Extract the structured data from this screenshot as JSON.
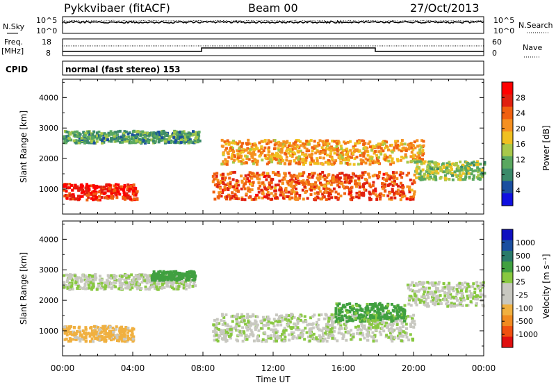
{
  "header": {
    "station": "Pykkvibaer (fitACF)",
    "beam": "Beam 00",
    "date": "27/Oct/2013"
  },
  "strip": {
    "nsky_label": "N.Sky",
    "nsky_ticks": [
      "10^5",
      "10^0"
    ],
    "nsearch_label": "N.Search",
    "nsearch_ticks": [
      "10^5",
      "10^0"
    ],
    "freq_label": "Freq.",
    "freq_unit": "[MHz]",
    "freq_ticks": [
      "18",
      "8"
    ],
    "nave_label": "Nave",
    "nave_ticks": [
      "60",
      "0"
    ],
    "cpid_label": "CPID",
    "cpid_text": "normal (fast stereo) 153"
  },
  "colors": {
    "power": [
      "#1010e0",
      "#1a4fa0",
      "#3a8a6a",
      "#5aa860",
      "#a8c84a",
      "#f0c020",
      "#f59020",
      "#f06010",
      "#e02010",
      "#ff0000"
    ],
    "velocity": [
      "#e01010",
      "#f05010",
      "#f08a20",
      "#f0b040",
      "#c8c8c0",
      "#c8c8c0",
      "#88c840",
      "#40a040",
      "#2a7a6a",
      "#1a4fa0",
      "#1010c0"
    ]
  },
  "chart_data": [
    {
      "type": "heatmap",
      "name": "power",
      "ylabel": "Slant Range [km]",
      "ylim": [
        180,
        4600
      ],
      "yticks": [
        "4000",
        "3000",
        "2000",
        "1000"
      ],
      "xticks": [
        "00:00",
        "04:00",
        "08:00",
        "12:00",
        "16:00",
        "20:00",
        "00:00"
      ],
      "colorbar": {
        "label": "Power [dB]",
        "ticks": [
          "28",
          "24",
          "20",
          "16",
          "12",
          "8",
          "4"
        ],
        "range": [
          0,
          32
        ]
      },
      "features": [
        {
          "t0": 0.0,
          "t1": 4.2,
          "range_center": 900,
          "range_width": 260,
          "value": 28
        },
        {
          "t0": 0.0,
          "t1": 7.8,
          "range_center": 2700,
          "range_width": 200,
          "value": 10
        },
        {
          "t0": 8.5,
          "t1": 20.0,
          "range_center": 1100,
          "range_width": 450,
          "value": 24
        },
        {
          "t0": 9.0,
          "t1": 20.5,
          "range_center": 2200,
          "range_width": 400,
          "value": 20
        },
        {
          "t0": 20.0,
          "t1": 24.0,
          "range_center": 1600,
          "range_width": 300,
          "value": 14
        }
      ]
    },
    {
      "type": "heatmap",
      "name": "velocity",
      "ylabel": "Slant Range [km]",
      "ylim": [
        180,
        4600
      ],
      "yticks": [
        "4000",
        "3000",
        "2000",
        "1000"
      ],
      "xticks": [
        "00:00",
        "04:00",
        "08:00",
        "12:00",
        "16:00",
        "20:00",
        "00:00"
      ],
      "xlabel": "Time UT",
      "colorbar": {
        "label": "Velocity [m s⁻¹]",
        "ticks": [
          "1000",
          "500",
          "100",
          "25",
          "-25",
          "-100",
          "-500",
          "-1000"
        ]
      },
      "features": [
        {
          "t0": 0.0,
          "t1": 4.0,
          "range_center": 900,
          "range_width": 250,
          "value": -150
        },
        {
          "t0": 0.0,
          "t1": 7.5,
          "range_center": 2600,
          "range_width": 250,
          "value": 0
        },
        {
          "t0": 5.0,
          "t1": 7.5,
          "range_center": 2800,
          "range_width": 150,
          "value": 200
        },
        {
          "t0": 8.5,
          "t1": 20.0,
          "range_center": 1100,
          "range_width": 450,
          "value": 0
        },
        {
          "t0": 15.5,
          "t1": 19.5,
          "range_center": 1600,
          "range_width": 300,
          "value": 150
        },
        {
          "t0": 19.5,
          "t1": 24.0,
          "range_center": 2200,
          "range_width": 400,
          "value": 0
        }
      ]
    }
  ]
}
